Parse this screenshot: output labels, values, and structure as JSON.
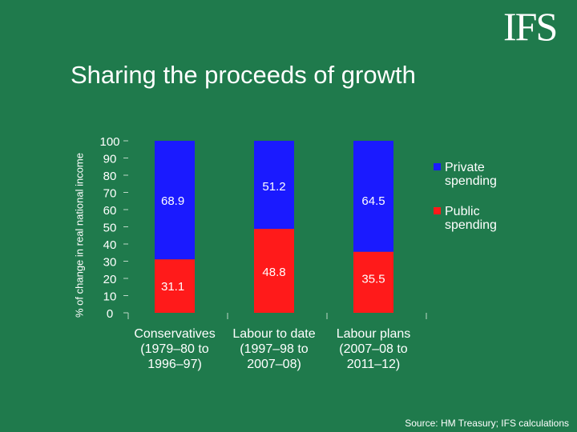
{
  "header": {
    "logo_text": "IFS",
    "title": "Sharing the proceeds of growth"
  },
  "footer": {
    "source": "Source: HM Treasury; IFS calculations"
  },
  "colors": {
    "background": "#1f7a4c",
    "private": "#1a1aff",
    "public": "#ff1a1a",
    "text": "#ffffff"
  },
  "chart_data": {
    "type": "bar",
    "stacked": true,
    "title": "",
    "ylabel": "% of change in real national income",
    "ylim": [
      0,
      100
    ],
    "yticks": [
      0,
      10,
      20,
      30,
      40,
      50,
      60,
      70,
      80,
      90,
      100
    ],
    "categories": [
      [
        "Conservatives",
        "(1979–80 to",
        "1996–97)"
      ],
      [
        "Labour to date",
        "(1997–98 to",
        "2007–08)"
      ],
      [
        "Labour plans",
        "(2007–08 to",
        "2011–12)"
      ]
    ],
    "series": [
      {
        "name": "Public spending",
        "legend_lines": [
          "Public",
          "spending"
        ],
        "values": [
          31.1,
          48.8,
          35.5
        ],
        "labels": [
          "31.1",
          "48.8",
          "35.5"
        ],
        "color": "#ff1a1a"
      },
      {
        "name": "Private spending",
        "legend_lines": [
          "Private",
          "spending"
        ],
        "values": [
          68.9,
          51.2,
          64.5
        ],
        "labels": [
          "68.9",
          "51.2",
          "64.5"
        ],
        "color": "#1a1aff"
      }
    ],
    "legend": {
      "placement": "right",
      "order": [
        "Private spending",
        "Public spending"
      ]
    }
  }
}
